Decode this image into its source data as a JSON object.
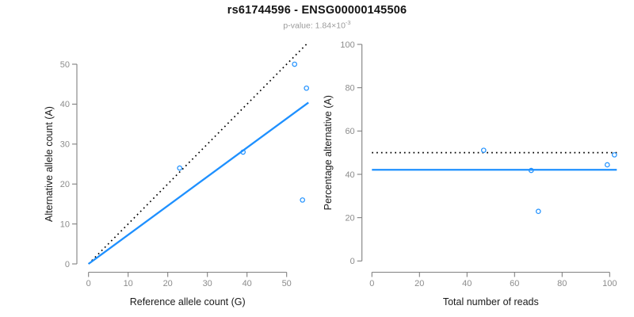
{
  "header": {
    "title": "rs61744596 - ENSG00000145506",
    "pvalue_text": "p-value: 1.84×10",
    "pvalue_exponent": "-3"
  },
  "colors": {
    "accent_blue": "#1E90FF",
    "dotted_black": "#000000",
    "axis_gray": "#808080",
    "tick_label_gray": "#8c8c8c",
    "text_black": "#1a1a1a",
    "subtitle_gray": "#9b9b9b"
  },
  "chart_data": [
    {
      "type": "scatter",
      "title": "",
      "xlabel": "Reference allele count (G)",
      "ylabel": "Alternative allele count (A)",
      "xlim": [
        0,
        55.5
      ],
      "ylim": [
        0,
        55.5
      ],
      "xticks": [
        0,
        10,
        20,
        30,
        40,
        50
      ],
      "yticks": [
        0,
        10,
        20,
        30,
        40,
        50
      ],
      "grid": false,
      "legend": false,
      "points": [
        [
          23,
          24
        ],
        [
          39,
          28
        ],
        [
          52,
          50
        ],
        [
          54,
          16
        ],
        [
          55,
          44
        ]
      ],
      "lines": [
        {
          "name": "identity-50pct",
          "style": "dotted",
          "color": "#000000",
          "x1": 0,
          "y1": 0,
          "x2": 55.2,
          "y2": 55.2
        },
        {
          "name": "fit",
          "style": "solid",
          "color": "#1E90FF",
          "x1": 0,
          "y1": 0,
          "x2": 55.5,
          "y2": 40.4
        }
      ]
    },
    {
      "type": "scatter",
      "title": "",
      "xlabel": "Total number of reads",
      "ylabel": "Percentage alternative (A)",
      "xlim": [
        0,
        105
      ],
      "ylim": [
        0,
        100
      ],
      "xticks": [
        0,
        20,
        40,
        60,
        80,
        100
      ],
      "yticks": [
        0,
        20,
        40,
        60,
        80,
        100
      ],
      "grid": false,
      "legend": false,
      "points": [
        [
          47,
          51.1
        ],
        [
          67,
          41.8
        ],
        [
          70,
          22.9
        ],
        [
          99,
          44.4
        ],
        [
          102,
          49.0
        ]
      ],
      "lines": [
        {
          "name": "expected-50pct",
          "style": "dotted",
          "color": "#000000",
          "x1": 0,
          "y1": 50,
          "x2": 103,
          "y2": 50
        },
        {
          "name": "mean-pct",
          "style": "solid",
          "color": "#1E90FF",
          "x1": 0,
          "y1": 42.1,
          "x2": 103,
          "y2": 42.1
        }
      ]
    }
  ]
}
